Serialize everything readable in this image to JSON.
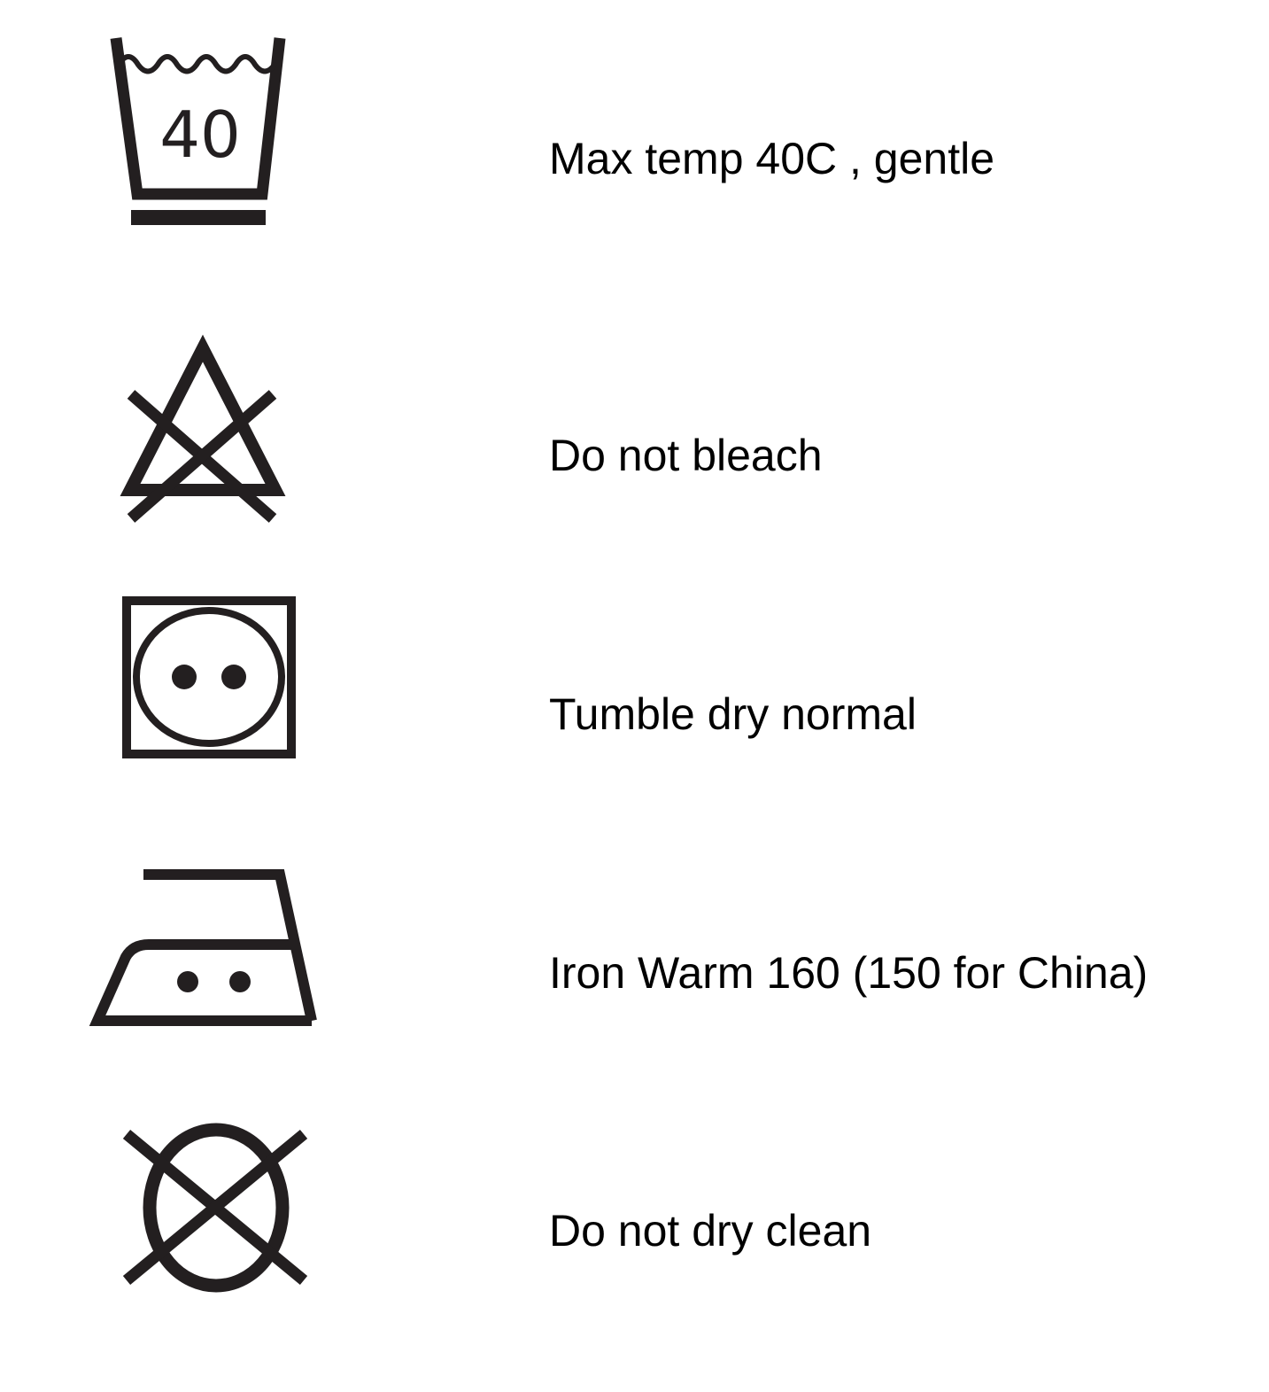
{
  "care_instructions": {
    "wash": {
      "icon": "wash-40-gentle-icon",
      "icon_text": "40",
      "label": "Max temp 40C ,  gentle"
    },
    "bleach": {
      "icon": "do-not-bleach-icon",
      "label": "Do not bleach"
    },
    "tumble_dry": {
      "icon": "tumble-dry-normal-icon",
      "label": "Tumble dry normal"
    },
    "iron": {
      "icon": "iron-warm-icon",
      "label": "Iron Warm 160 (150 for China)"
    },
    "dry_clean": {
      "icon": "do-not-dry-clean-icon",
      "label": "Do not dry clean"
    }
  },
  "colors": {
    "ink": "#000000",
    "icon_ink": "#231f20",
    "background": "#ffffff"
  }
}
